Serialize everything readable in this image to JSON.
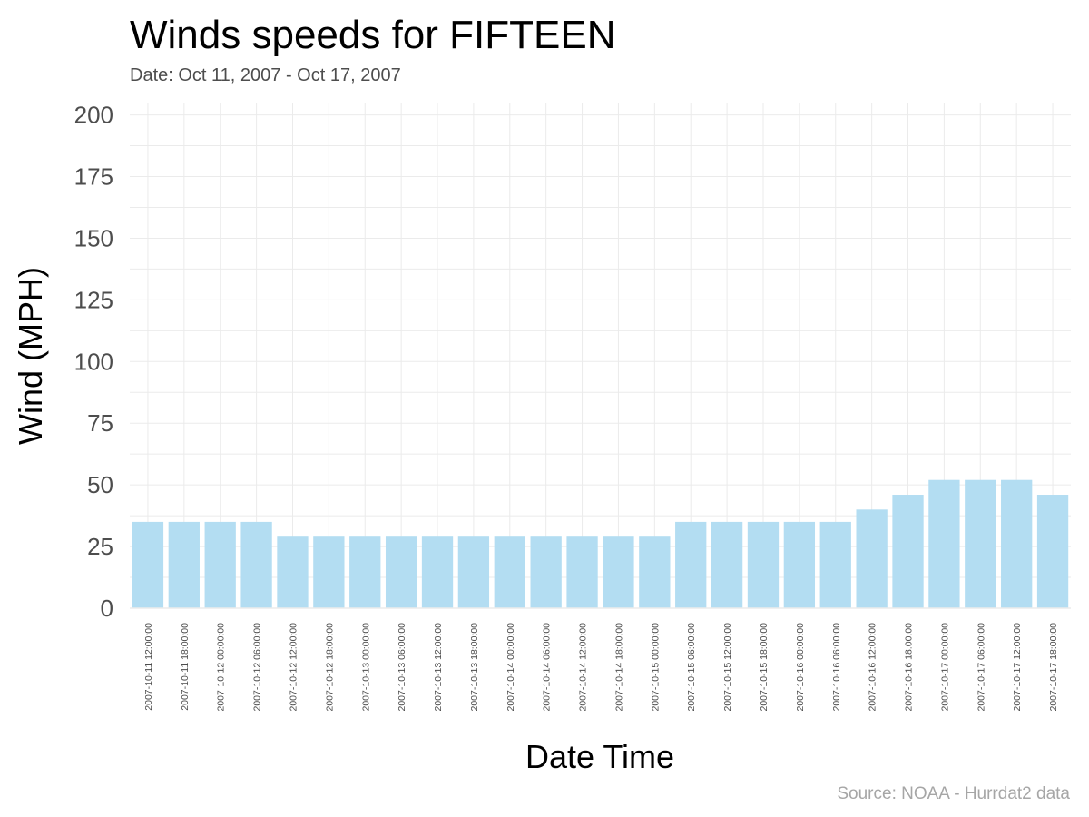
{
  "chart_data": {
    "type": "bar",
    "title": "Winds speeds for FIFTEEN",
    "subtitle": "Date:  Oct 11, 2007 - Oct 17, 2007",
    "xlabel": "Date Time",
    "ylabel": "Wind (MPH)",
    "caption": "Source: NOAA - Hurrdat2 data",
    "ylim": [
      0,
      205
    ],
    "yticks": [
      "0",
      "25",
      "50",
      "75",
      "100",
      "125",
      "150",
      "175",
      "200"
    ],
    "ytick_values": [
      0,
      25,
      50,
      75,
      100,
      125,
      150,
      175,
      200
    ],
    "grid": true,
    "categories": [
      "2007-10-11 12:00:00",
      "2007-10-11 18:00:00",
      "2007-10-12 00:00:00",
      "2007-10-12 06:00:00",
      "2007-10-12 12:00:00",
      "2007-10-12 18:00:00",
      "2007-10-13 00:00:00",
      "2007-10-13 06:00:00",
      "2007-10-13 12:00:00",
      "2007-10-13 18:00:00",
      "2007-10-14 00:00:00",
      "2007-10-14 06:00:00",
      "2007-10-14 12:00:00",
      "2007-10-14 18:00:00",
      "2007-10-15 00:00:00",
      "2007-10-15 06:00:00",
      "2007-10-15 12:00:00",
      "2007-10-15 18:00:00",
      "2007-10-16 00:00:00",
      "2007-10-16 06:00:00",
      "2007-10-16 12:00:00",
      "2007-10-16 18:00:00",
      "2007-10-17 00:00:00",
      "2007-10-17 06:00:00",
      "2007-10-17 12:00:00",
      "2007-10-17 18:00:00"
    ],
    "values": [
      35,
      35,
      35,
      35,
      29,
      29,
      29,
      29,
      29,
      29,
      29,
      29,
      29,
      29,
      29,
      35,
      35,
      35,
      35,
      35,
      40,
      46,
      52,
      52,
      52,
      46
    ],
    "colors": {
      "bar": "#b3ddf2",
      "grid": "#ebebeb",
      "text": "#4d4d4d",
      "caption": "#a6a6a6"
    }
  }
}
